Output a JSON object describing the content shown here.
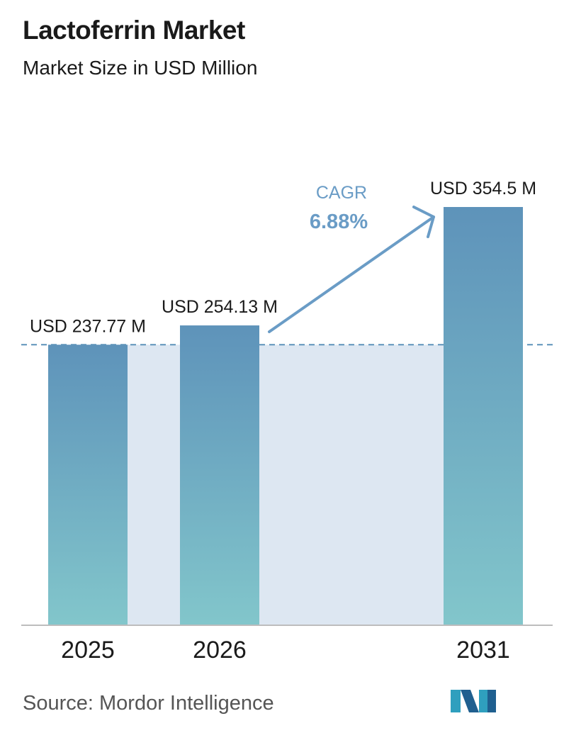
{
  "header": {
    "title": "Lactoferrin Market",
    "subtitle": "Market Size in USD Million"
  },
  "chart_data": {
    "type": "bar",
    "categories": [
      "2025",
      "2026",
      "2031"
    ],
    "values": [
      237.77,
      254.13,
      354.5
    ],
    "data_labels": [
      "USD 237.77 M",
      "USD 254.13 M",
      "USD 354.5 M"
    ],
    "unit": "USD Million",
    "annotation": {
      "label": "CAGR",
      "value": "6.88%"
    },
    "reference_line": {
      "value": 237.77,
      "style": "dashed"
    },
    "ylim": [
      0,
      354.5
    ],
    "grid": false,
    "legend": "none",
    "colors": {
      "bar_top": "#5e93ba",
      "bar_bottom": "#82c6cb",
      "shade": "#dde7f2",
      "accent": "#6a9cc6",
      "baseline": "#bdbdbd"
    }
  },
  "footer": {
    "source": "Source:  Mordor Intelligence",
    "logo_icon": "mordor-intelligence-logo-icon"
  }
}
